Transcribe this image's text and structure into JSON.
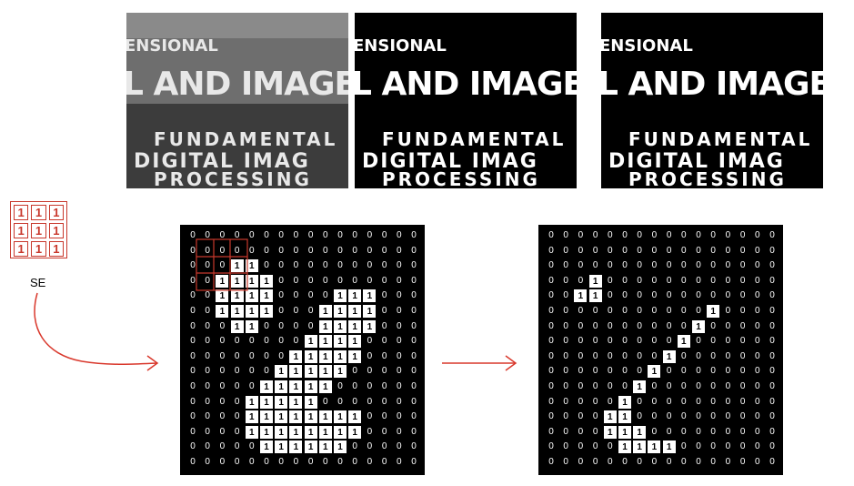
{
  "photos": [
    {
      "name": "photo-grayscale",
      "style": "gray",
      "text": [
        "ENSIONAL",
        "L AND IMAGE PR",
        "FUNDAMENTAL",
        "DIGITAL IMAG",
        "PROCESSING"
      ]
    },
    {
      "name": "photo-binary",
      "style": "binary",
      "text": [
        "ENSIONAL",
        "L AND IMAGE PR",
        "FUNDAMENTAL",
        "DIGITAL IMAG",
        "PROCESSING"
      ]
    },
    {
      "name": "photo-eroded",
      "style": "eroded",
      "text": [
        "ENSIONAL",
        "L AND IMAGE PR",
        "FUNDAMENTAL",
        "DIGITAL IMAG",
        "PROCESSING"
      ]
    }
  ],
  "structuring_element": {
    "label": "SE",
    "values": [
      [
        1,
        1,
        1
      ],
      [
        1,
        1,
        1
      ],
      [
        1,
        1,
        1
      ]
    ]
  },
  "colors": {
    "se_red": "#c8382c",
    "arrow_red": "#d9382c"
  },
  "input_grid": [
    [
      0,
      0,
      0,
      0,
      0,
      0,
      0,
      0,
      0,
      0,
      0,
      0,
      0,
      0,
      0,
      0
    ],
    [
      0,
      0,
      0,
      0,
      0,
      0,
      0,
      0,
      0,
      0,
      0,
      0,
      0,
      0,
      0,
      0
    ],
    [
      0,
      0,
      0,
      1,
      1,
      0,
      0,
      0,
      0,
      0,
      0,
      0,
      0,
      0,
      0,
      0
    ],
    [
      0,
      0,
      1,
      1,
      1,
      1,
      0,
      0,
      0,
      0,
      0,
      0,
      0,
      0,
      0,
      0
    ],
    [
      0,
      0,
      1,
      1,
      1,
      1,
      0,
      0,
      0,
      0,
      1,
      1,
      1,
      0,
      0,
      0
    ],
    [
      0,
      0,
      1,
      1,
      1,
      1,
      0,
      0,
      0,
      1,
      1,
      1,
      1,
      0,
      0,
      0
    ],
    [
      0,
      0,
      0,
      1,
      1,
      0,
      0,
      0,
      0,
      1,
      1,
      1,
      1,
      0,
      0,
      0
    ],
    [
      0,
      0,
      0,
      0,
      0,
      0,
      0,
      0,
      1,
      1,
      1,
      1,
      0,
      0,
      0,
      0
    ],
    [
      0,
      0,
      0,
      0,
      0,
      0,
      0,
      1,
      1,
      1,
      1,
      1,
      0,
      0,
      0,
      0
    ],
    [
      0,
      0,
      0,
      0,
      0,
      0,
      1,
      1,
      1,
      1,
      1,
      0,
      0,
      0,
      0,
      0
    ],
    [
      0,
      0,
      0,
      0,
      0,
      1,
      1,
      1,
      1,
      1,
      0,
      0,
      0,
      0,
      0,
      0
    ],
    [
      0,
      0,
      0,
      0,
      1,
      1,
      1,
      1,
      1,
      0,
      0,
      0,
      0,
      0,
      0,
      0
    ],
    [
      0,
      0,
      0,
      0,
      1,
      1,
      1,
      1,
      1,
      1,
      1,
      1,
      0,
      0,
      0,
      0
    ],
    [
      0,
      0,
      0,
      0,
      1,
      1,
      1,
      1,
      1,
      1,
      1,
      1,
      0,
      0,
      0,
      0
    ],
    [
      0,
      0,
      0,
      0,
      0,
      1,
      1,
      1,
      1,
      1,
      1,
      0,
      0,
      0,
      0,
      0
    ],
    [
      0,
      0,
      0,
      0,
      0,
      0,
      0,
      0,
      0,
      0,
      0,
      0,
      0,
      0,
      0,
      0
    ]
  ],
  "output_grid": [
    [
      0,
      0,
      0,
      0,
      0,
      0,
      0,
      0,
      0,
      0,
      0,
      0,
      0,
      0,
      0,
      0
    ],
    [
      0,
      0,
      0,
      0,
      0,
      0,
      0,
      0,
      0,
      0,
      0,
      0,
      0,
      0,
      0,
      0
    ],
    [
      0,
      0,
      0,
      0,
      0,
      0,
      0,
      0,
      0,
      0,
      0,
      0,
      0,
      0,
      0,
      0
    ],
    [
      0,
      0,
      0,
      1,
      0,
      0,
      0,
      0,
      0,
      0,
      0,
      0,
      0,
      0,
      0,
      0
    ],
    [
      0,
      0,
      1,
      1,
      0,
      0,
      0,
      0,
      0,
      0,
      0,
      0,
      0,
      0,
      0,
      0
    ],
    [
      0,
      0,
      0,
      0,
      0,
      0,
      0,
      0,
      0,
      0,
      0,
      1,
      0,
      0,
      0,
      0
    ],
    [
      0,
      0,
      0,
      0,
      0,
      0,
      0,
      0,
      0,
      0,
      1,
      0,
      0,
      0,
      0,
      0
    ],
    [
      0,
      0,
      0,
      0,
      0,
      0,
      0,
      0,
      0,
      1,
      0,
      0,
      0,
      0,
      0,
      0
    ],
    [
      0,
      0,
      0,
      0,
      0,
      0,
      0,
      0,
      1,
      0,
      0,
      0,
      0,
      0,
      0,
      0
    ],
    [
      0,
      0,
      0,
      0,
      0,
      0,
      0,
      1,
      0,
      0,
      0,
      0,
      0,
      0,
      0,
      0
    ],
    [
      0,
      0,
      0,
      0,
      0,
      0,
      1,
      0,
      0,
      0,
      0,
      0,
      0,
      0,
      0,
      0
    ],
    [
      0,
      0,
      0,
      0,
      0,
      1,
      0,
      0,
      0,
      0,
      0,
      0,
      0,
      0,
      0,
      0
    ],
    [
      0,
      0,
      0,
      0,
      1,
      1,
      0,
      0,
      0,
      0,
      0,
      0,
      0,
      0,
      0,
      0
    ],
    [
      0,
      0,
      0,
      0,
      1,
      1,
      1,
      0,
      0,
      0,
      0,
      0,
      0,
      0,
      0,
      0
    ],
    [
      0,
      0,
      0,
      0,
      0,
      1,
      1,
      1,
      1,
      0,
      0,
      0,
      0,
      0,
      0,
      0
    ],
    [
      0,
      0,
      0,
      0,
      0,
      0,
      0,
      0,
      0,
      0,
      0,
      0,
      0,
      0,
      0,
      0
    ]
  ]
}
